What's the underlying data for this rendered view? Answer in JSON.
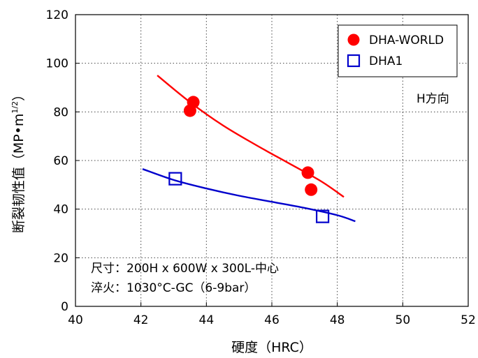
{
  "chart_data": {
    "type": "scatter",
    "title": "",
    "xlabel": "硬度（HRC）",
    "ylabel_main": "断裂韧性值（MP•m",
    "ylabel_sup": "1/2",
    "ylabel_end": "）",
    "xlim": [
      40,
      52
    ],
    "ylim": [
      0,
      120
    ],
    "xticks": [
      40,
      42,
      44,
      46,
      48,
      50,
      52
    ],
    "yticks": [
      0,
      20,
      40,
      60,
      80,
      100,
      120
    ],
    "grid": true,
    "legend_position": "top-right",
    "series": [
      {
        "name": "DHA-WORLD",
        "marker": "filled-circle",
        "color": "#ff0000",
        "points": [
          [
            43.5,
            80.5
          ],
          [
            43.6,
            84
          ],
          [
            47.1,
            55
          ],
          [
            47.2,
            48
          ]
        ],
        "fit_curve": [
          [
            42.5,
            95
          ],
          [
            43.5,
            84
          ],
          [
            44.5,
            74.5
          ],
          [
            45.5,
            66.5
          ],
          [
            46.5,
            59
          ],
          [
            47.5,
            51.5
          ],
          [
            48.2,
            45
          ]
        ]
      },
      {
        "name": "DHA1",
        "marker": "open-square",
        "color": "#0000cc",
        "points": [
          [
            43.05,
            52.5
          ],
          [
            47.55,
            37
          ]
        ],
        "fit_curve": [
          [
            42.05,
            56.5
          ],
          [
            43.0,
            52
          ],
          [
            44.0,
            48.5
          ],
          [
            45.0,
            45.5
          ],
          [
            46.0,
            43
          ],
          [
            47.0,
            40.5
          ],
          [
            48.0,
            37.5
          ],
          [
            48.55,
            35
          ]
        ]
      }
    ],
    "annotations": {
      "direction": "H方向",
      "size_line": "尺寸：200H x 600W x 300L-中心",
      "quench_line": "淬火：1030°C-GC（6-9bar）"
    }
  }
}
